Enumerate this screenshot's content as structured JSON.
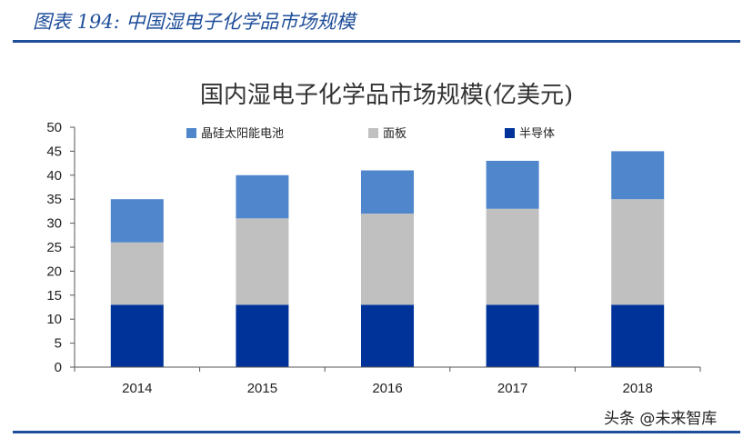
{
  "figure_caption": "图表 194:  中国湿电子化学品市场规模",
  "watermark": "头条 @未来智库",
  "chart_data": {
    "type": "bar",
    "stacked": true,
    "title": "国内湿电子化学品市场规模(亿美元)",
    "xlabel": "",
    "ylabel": "",
    "categories": [
      "2014",
      "2015",
      "2016",
      "2017",
      "2018"
    ],
    "series": [
      {
        "name": "半导体",
        "values": [
          13,
          13,
          13,
          13,
          13
        ],
        "color": "#003399"
      },
      {
        "name": "面板",
        "values": [
          13,
          18,
          19,
          20,
          22
        ],
        "color": "#c0c0c0"
      },
      {
        "name": "晶硅太阳能电池",
        "values": [
          9,
          9,
          9,
          10,
          10
        ],
        "color": "#4f86cc"
      }
    ],
    "legend_order": [
      "晶硅太阳能电池",
      "面板",
      "半导体"
    ],
    "yticks": [
      0,
      5,
      10,
      15,
      20,
      25,
      30,
      35,
      40,
      45,
      50
    ],
    "ylim": [
      0,
      50
    ],
    "grid": false,
    "legend_position": "top"
  }
}
